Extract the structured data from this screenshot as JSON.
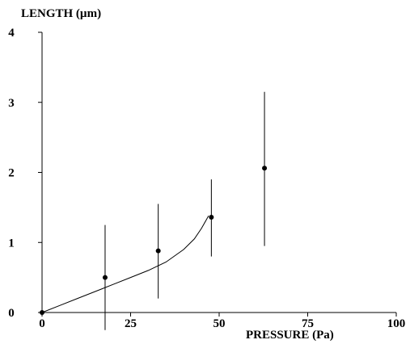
{
  "chart_data": {
    "type": "scatter",
    "xlabel": "PRESSURE   (Pa)",
    "ylabel": "LENGTH (µm)",
    "xlim": [
      0,
      100
    ],
    "ylim": [
      0,
      4
    ],
    "x_ticks": [
      0,
      25,
      50,
      75,
      100
    ],
    "y_ticks": [
      0,
      1,
      2,
      3,
      4
    ],
    "x_tick_labels": [
      "0",
      "25",
      "50",
      "75",
      "100"
    ],
    "y_tick_labels": [
      "0",
      "1",
      "2",
      "3",
      "4"
    ],
    "series": [
      {
        "type": "scatter",
        "x": [
          0,
          17.8,
          32.8,
          47.8,
          62.8
        ],
        "y": [
          0,
          0.5,
          0.88,
          1.36,
          2.06
        ],
        "error_bars": {
          "lower": [
            0,
            -0.25,
            0.2,
            0.8,
            0.95
          ],
          "upper": [
            0,
            1.25,
            1.55,
            1.9,
            3.15
          ]
        }
      },
      {
        "type": "line",
        "x": [
          0,
          5,
          10,
          15,
          20,
          25,
          30,
          35,
          40,
          43,
          45,
          47
        ],
        "y": [
          0,
          0.1,
          0.2,
          0.3,
          0.4,
          0.5,
          0.6,
          0.72,
          0.9,
          1.05,
          1.2,
          1.38
        ]
      }
    ],
    "grid": false
  }
}
